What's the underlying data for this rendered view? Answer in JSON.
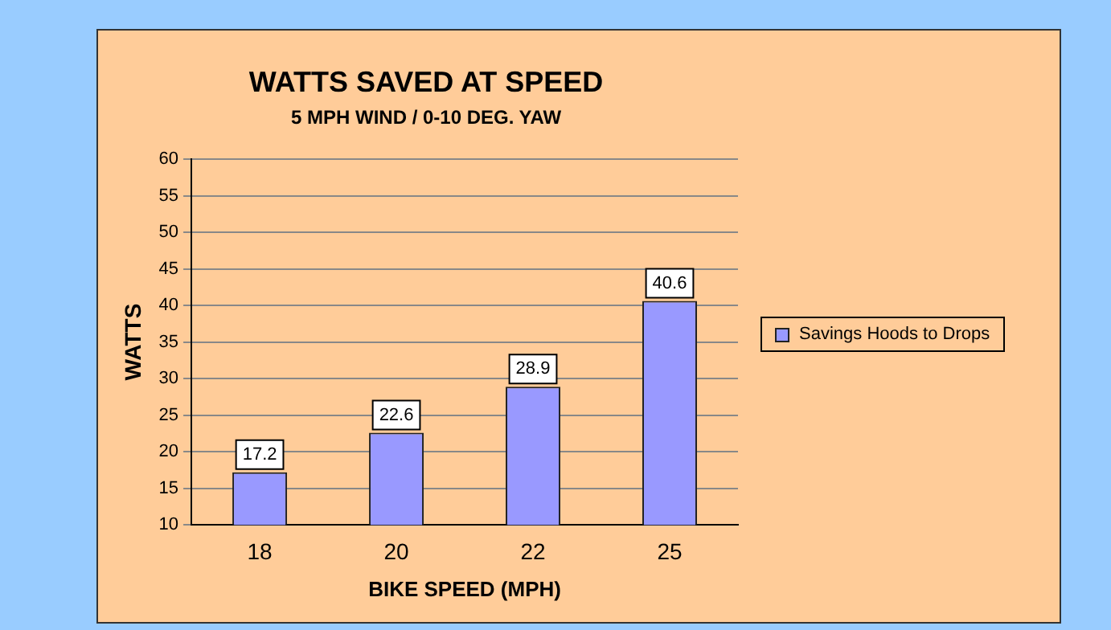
{
  "chart_data": {
    "type": "bar",
    "title": "WATTS SAVED AT SPEED",
    "subtitle": "5 MPH WIND / 0-10 DEG. YAW",
    "xlabel": "BIKE SPEED (MPH)",
    "ylabel": "WATTS",
    "categories": [
      "18",
      "20",
      "22",
      "25"
    ],
    "series": [
      {
        "name": "Savings Hoods to Drops",
        "color": "#9999ff",
        "values": [
          17.2,
          22.6,
          28.9,
          40.6
        ]
      }
    ],
    "ylim": [
      10,
      60
    ],
    "yticks": [
      10,
      15,
      20,
      25,
      30,
      35,
      40,
      45,
      50,
      55,
      60
    ],
    "grid": "y",
    "legend": "right",
    "data_labels": true
  }
}
